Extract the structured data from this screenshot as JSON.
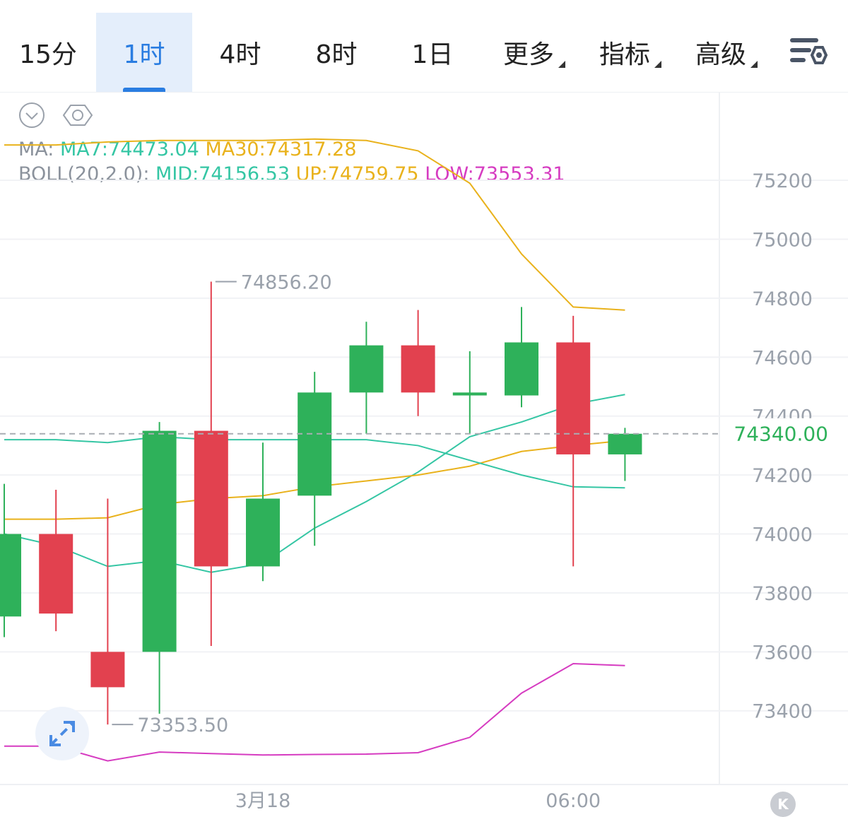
{
  "tabs": [
    {
      "label": "15分",
      "active": false,
      "dropdown": false
    },
    {
      "label": "1时",
      "active": true,
      "dropdown": false
    },
    {
      "label": "4时",
      "active": false,
      "dropdown": false
    },
    {
      "label": "8时",
      "active": false,
      "dropdown": false
    },
    {
      "label": "1日",
      "active": false,
      "dropdown": false
    },
    {
      "label": "更多",
      "active": false,
      "dropdown": true
    },
    {
      "label": "指标",
      "active": false,
      "dropdown": true
    },
    {
      "label": "高级",
      "active": false,
      "dropdown": true
    }
  ],
  "legend": {
    "ma_prefix": "MA:",
    "ma7": "MA7:74473.04",
    "ma30": "MA30:74317.28",
    "boll_prefix": "BOLL(20,2.0):",
    "mid": "MID:74156.53",
    "up": "UP:74759.75",
    "low": "LOW:73553.31"
  },
  "colors": {
    "up_candle": "#2eb15a",
    "down_candle": "#e2414f",
    "ma7": "#35c6a4",
    "ma30": "#e9b21c",
    "boll_up": "#e9b21c",
    "boll_mid": "#35c6a4",
    "boll_low": "#d63cc1",
    "accent": "#2a7de1"
  },
  "chart_data": {
    "type": "candlestick",
    "ylim": [
      73150,
      75500
    ],
    "yticks": [
      75200,
      75000,
      74800,
      74600,
      74400,
      74200,
      74000,
      73800,
      73600,
      73400
    ],
    "x_labels": [
      {
        "index": 5,
        "label": "3月18"
      },
      {
        "index": 11,
        "label": "06:00"
      }
    ],
    "current_price": 74340.0,
    "max_label": {
      "index": 4,
      "value": 74856.2,
      "text": "74856.20"
    },
    "min_label": {
      "index": 2,
      "value": 73353.5,
      "text": "73353.50"
    },
    "candles": [
      {
        "open": 73720,
        "close": 74000,
        "high": 74170,
        "low": 73650
      },
      {
        "open": 74000,
        "close": 73730,
        "high": 74150,
        "low": 73670
      },
      {
        "open": 73600,
        "close": 73480,
        "high": 74120,
        "low": 73353.5
      },
      {
        "open": 73600,
        "close": 74350,
        "high": 74380,
        "low": 73390
      },
      {
        "open": 74350,
        "close": 73890,
        "high": 74856.2,
        "low": 73620
      },
      {
        "open": 73890,
        "close": 74120,
        "high": 74310,
        "low": 73840
      },
      {
        "open": 74130,
        "close": 74480,
        "high": 74550,
        "low": 73960
      },
      {
        "open": 74480,
        "close": 74640,
        "high": 74720,
        "low": 74340
      },
      {
        "open": 74640,
        "close": 74480,
        "high": 74760,
        "low": 74400
      },
      {
        "open": 74470,
        "close": 74480,
        "high": 74620,
        "low": 74340
      },
      {
        "open": 74470,
        "close": 74650,
        "high": 74770,
        "low": 74430
      },
      {
        "open": 74650,
        "close": 74270,
        "high": 74740,
        "low": 73890
      },
      {
        "open": 74270,
        "close": 74340,
        "high": 74360,
        "low": 74180
      }
    ],
    "series": [
      {
        "name": "MA7",
        "values": [
          74000,
          73960,
          73890,
          73910,
          73870,
          73900,
          74020,
          74110,
          74210,
          74330,
          74380,
          74440,
          74473.04
        ]
      },
      {
        "name": "MA30",
        "values": [
          74050,
          74050,
          74055,
          74100,
          74120,
          74130,
          74160,
          74180,
          74200,
          74230,
          74280,
          74300,
          74317.28
        ]
      },
      {
        "name": "UP",
        "values": [
          75320,
          75320,
          75330,
          75335,
          75335,
          75335,
          75340,
          75335,
          75300,
          75190,
          74950,
          74770,
          74759.75
        ]
      },
      {
        "name": "MID",
        "values": [
          74320,
          74320,
          74310,
          74330,
          74320,
          74320,
          74320,
          74320,
          74300,
          74250,
          74200,
          74160,
          74156.53
        ]
      },
      {
        "name": "LOW",
        "values": [
          73280,
          73280,
          73230,
          73260,
          73255,
          73250,
          73252,
          73253,
          73258,
          73310,
          73460,
          73560,
          73553.31
        ]
      }
    ]
  }
}
